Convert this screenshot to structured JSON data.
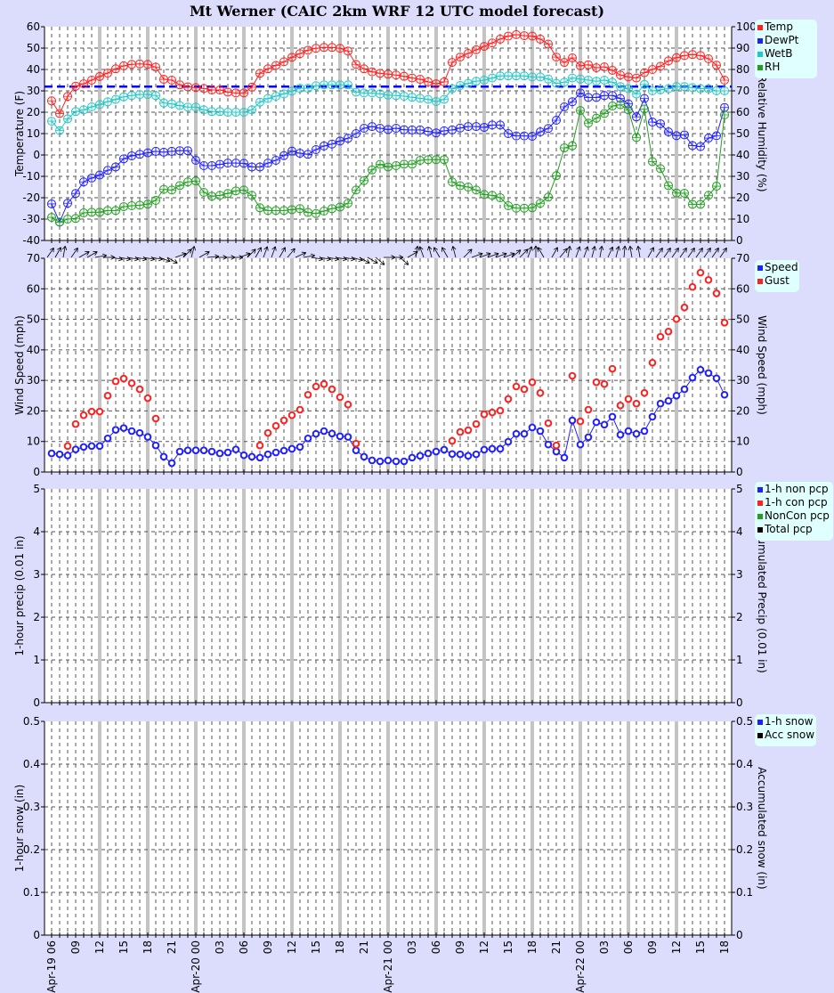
{
  "title": "Mt Werner (CAIC 2km WRF 12 UTC model forecast)",
  "x_axis": {
    "range": [
      "Apr-19 06",
      "Apr-22 18"
    ],
    "step": "1 hour",
    "tick_labels": [
      "Apr-19 06",
      "09",
      "12",
      "15",
      "18",
      "21",
      "Apr-20 00",
      "03",
      "06",
      "09",
      "12",
      "15",
      "18",
      "21",
      "Apr-21 00",
      "03",
      "06",
      "09",
      "12",
      "15",
      "18",
      "21",
      "Apr-22 00",
      "03",
      "06",
      "09",
      "12",
      "15",
      "18"
    ]
  },
  "colors": {
    "background": "#dcdcfc",
    "plot": "#ffffff",
    "legend": "#e0ffff",
    "six_hour_line": "#c4c4c4"
  },
  "chart_data": [
    {
      "type": "line",
      "ylabel": "Temperature (F)",
      "ylim": [
        -40,
        60
      ],
      "ytick_step": 10,
      "y2label": "Relative Humidity (%)",
      "y2lim": [
        0,
        100
      ],
      "y2tick_step": 10,
      "grid": true,
      "legend_placement": "right",
      "reference_line": {
        "value": 32,
        "color": "#0000ff",
        "style": "dashed"
      },
      "series": [
        {
          "name": "Temp",
          "color": "#ff2020",
          "axis": "left",
          "values": [
            25.3,
            19.4,
            27.4,
            32.2,
            33.3,
            35,
            36.7,
            38.3,
            40.3,
            41.7,
            42.4,
            42.6,
            42.4,
            41.1,
            35.4,
            35,
            32.8,
            31.9,
            31.5,
            31.1,
            30.4,
            30.4,
            29.4,
            29,
            29,
            31.7,
            38.2,
            40.3,
            41.9,
            43.6,
            45.7,
            47.4,
            49,
            49.9,
            50.3,
            50.3,
            49.9,
            48.6,
            42.4,
            40.3,
            38.9,
            38.2,
            37.8,
            37.4,
            36.8,
            36,
            35.4,
            34.2,
            33.3,
            34.2,
            43.3,
            45.8,
            47.5,
            49.2,
            50.8,
            52.4,
            54.2,
            55.6,
            56.3,
            55.8,
            55.6,
            54.2,
            51.9,
            45.8,
            43.3,
            45.4,
            41.7,
            42.2,
            40.8,
            41.2,
            39.6,
            37.4,
            36.5,
            36,
            38.5,
            40,
            41.5,
            44,
            45.5,
            46.5,
            47,
            46.5,
            45,
            42,
            35
          ]
        },
        {
          "name": "DewPt",
          "color": "#2020ff",
          "axis": "left",
          "values": [
            -22.9,
            -31.4,
            -22.6,
            -18,
            -12.6,
            -10.8,
            -9.4,
            -7.2,
            -5.6,
            -1.8,
            -0.4,
            0.3,
            1,
            1.7,
            1.3,
            1.7,
            2,
            2,
            -2.5,
            -5,
            -5,
            -4.4,
            -3.8,
            -3.8,
            -3.9,
            -5.6,
            -5.6,
            -3.8,
            -2.5,
            -0.3,
            1.8,
            0.8,
            0.3,
            2.5,
            4.2,
            5.1,
            6.5,
            7.8,
            10,
            12.5,
            13.3,
            12.5,
            11.9,
            12.5,
            11.8,
            11.7,
            11.7,
            11,
            10.3,
            11.3,
            11.7,
            12.6,
            13.3,
            13.3,
            12.9,
            14,
            14,
            10,
            8.9,
            8.9,
            8.75,
            10.8,
            12.4,
            16.25,
            22.5,
            24.9,
            29,
            26.9,
            26.9,
            27.8,
            27.8,
            26.4,
            23.9,
            17.8,
            26.4,
            15.4,
            14.6,
            10.8,
            9,
            9.4,
            4.4,
            3.9,
            7.9,
            9,
            22.2
          ]
        },
        {
          "name": "WetB",
          "color": "#20c8c8",
          "axis": "left",
          "values": [
            15.8,
            11.4,
            16.9,
            20.3,
            21.1,
            22.5,
            23.6,
            24.9,
            26,
            27.2,
            27.8,
            28.3,
            28.3,
            27.8,
            24.3,
            23.9,
            23.1,
            22.4,
            22.4,
            21.1,
            20.3,
            20.3,
            20,
            20,
            20,
            21.1,
            24.7,
            26.4,
            27.5,
            28.6,
            29.9,
            31.2,
            31.2,
            32.4,
            32.8,
            32.8,
            32.8,
            32.8,
            29.4,
            29,
            29,
            28.6,
            28,
            27.8,
            27.5,
            27,
            26.5,
            26,
            25,
            26,
            31,
            32.5,
            33.5,
            34.5,
            35,
            36,
            37,
            37,
            37,
            37,
            36.5,
            36.5,
            35.5,
            33.5,
            34,
            36,
            35.5,
            35,
            34.5,
            35,
            34,
            32,
            31,
            28.5,
            33,
            30,
            30.5,
            31,
            32,
            32,
            31.5,
            31,
            31,
            30,
            30
          ]
        },
        {
          "name": "RH",
          "color": "#20a020",
          "axis": "right",
          "values": [
            10.8,
            8.6,
            10,
            10.3,
            12.9,
            13.2,
            13.2,
            14,
            14,
            15.8,
            16.25,
            16.5,
            17,
            18.75,
            23.9,
            23.6,
            25.7,
            27.4,
            27.8,
            22.5,
            20.7,
            21.1,
            22,
            23.2,
            23.6,
            21.1,
            15.3,
            14,
            14,
            14,
            14.4,
            14.9,
            13.1,
            12.6,
            13.75,
            14.9,
            15.6,
            17.4,
            23.6,
            28,
            33,
            35.6,
            34.4,
            35,
            35.7,
            35.7,
            37.5,
            37.8,
            37.8,
            37.8,
            27.4,
            25.6,
            25,
            23.6,
            21.5,
            21.1,
            20,
            16.25,
            15.1,
            15.1,
            15.3,
            17.4,
            20.3,
            30.3,
            43.3,
            44.3,
            60.8,
            54.9,
            57.2,
            59.4,
            62.9,
            63.5,
            61.1,
            48.2,
            61.5,
            36.9,
            33.6,
            25.7,
            22.2,
            22.1,
            16.9,
            16.9,
            21.1,
            25.4,
            58.75
          ]
        }
      ]
    },
    {
      "type": "line",
      "ylabel": "Wind Speed (mph)",
      "ylim": [
        0,
        70
      ],
      "ytick_step": 10,
      "y2label": "Wind Speed (mph)",
      "y2lim": [
        0,
        70
      ],
      "y2tick_step": 10,
      "grid": true,
      "legend_placement": "right",
      "series": [
        {
          "name": "Speed",
          "color": "#2020ff",
          "style": "line",
          "values": [
            6.1,
            5.8,
            5.4,
            7.4,
            8.2,
            8.5,
            8.5,
            11,
            13.8,
            14.4,
            13.4,
            12.8,
            11.5,
            8.7,
            5,
            2.9,
            6.7,
            7.1,
            7.1,
            7.1,
            6.7,
            6.1,
            6.4,
            7.4,
            5.5,
            5,
            4.7,
            5.8,
            6.4,
            7,
            7.6,
            8.2,
            11,
            12.5,
            13.4,
            12.6,
            11.7,
            11.5,
            7.1,
            5,
            3.8,
            3.5,
            3.8,
            3.5,
            3.5,
            4.7,
            5.3,
            6.1,
            6.7,
            7.3,
            5.9,
            5.8,
            5.3,
            5.8,
            7.3,
            7.6,
            7.6,
            9.9,
            12.5,
            12.5,
            14.6,
            13.4,
            9,
            6.7,
            4.7,
            16.9,
            9,
            11.4,
            16.3,
            15.5,
            18.1,
            12.2,
            13.4,
            12.5,
            13.4,
            18.1,
            22.4,
            23.3,
            25,
            27.1,
            30.9,
            33.5,
            32.4,
            30.7,
            25.3
          ]
        },
        {
          "name": "Gust",
          "color": "#ff2020",
          "style": "points",
          "values": [
            null,
            null,
            8.5,
            15.7,
            18.6,
            19.8,
            19.8,
            25,
            29.7,
            30.6,
            29.1,
            27.1,
            24.2,
            17.5,
            null,
            null,
            null,
            null,
            null,
            null,
            null,
            null,
            null,
            null,
            null,
            null,
            8.7,
            12.8,
            15.1,
            16.9,
            18.6,
            20.4,
            25.3,
            28,
            28.8,
            27.1,
            24.5,
            22.1,
            9.3,
            null,
            null,
            null,
            null,
            null,
            null,
            null,
            null,
            null,
            null,
            null,
            10.2,
            13.1,
            13.7,
            15.7,
            18.9,
            19.5,
            20.1,
            23.9,
            28,
            27.1,
            29.4,
            25.9,
            16,
            8.7,
            null,
            31.5,
            16.6,
            20.4,
            29.4,
            28.8,
            33.8,
            21.8,
            23.9,
            22.4,
            25.9,
            35.8,
            44.3,
            46,
            50.1,
            53.9,
            60.6,
            65.3,
            62.9,
            58.5,
            48.9
          ]
        }
      ],
      "wind_arrow_heading_deg": [
        35,
        30,
        10,
        35,
        60,
        60,
        80,
        90,
        100,
        100,
        100,
        100,
        100,
        100,
        110,
        120,
        70,
        45,
        15,
        60,
        85,
        90,
        90,
        90,
        70,
        45,
        30,
        20,
        20,
        30,
        40,
        65,
        80,
        100,
        100,
        100,
        100,
        100,
        105,
        120,
        120,
        130,
        90,
        90,
        130,
        60,
        10,
        340,
        345,
        330,
        330,
        345,
        45,
        70,
        70,
        70,
        70,
        70,
        50,
        45,
        20,
        0,
        330,
        30,
        40,
        10,
        20,
        20,
        15,
        10,
        25,
        15,
        5,
        350,
        350,
        30,
        35,
        35,
        35,
        35,
        35,
        35,
        35,
        35,
        35
      ]
    },
    {
      "type": "bar",
      "ylabel": "1-hour precip (0.01 in)",
      "ylim": [
        0,
        5
      ],
      "ytick_step": 1,
      "y2label": "Accumulated Precip (0.01 in)",
      "y2lim": [
        0,
        5
      ],
      "y2tick_step": 1,
      "grid": true,
      "legend_placement": "right",
      "series": [
        {
          "name": "1-h non pcp",
          "color": "#2020ff",
          "values": []
        },
        {
          "name": "1-h con pcp",
          "color": "#ff2020",
          "values": []
        },
        {
          "name": "NonCon pcp",
          "color": "#20a020",
          "values": []
        },
        {
          "name": "Total pcp",
          "color": "#000000",
          "values": []
        }
      ]
    },
    {
      "type": "bar",
      "ylabel": "1-hour snow (in)",
      "ylim": [
        0,
        0.5
      ],
      "ytick_step": 0.1,
      "y2label": "Accumulated snow (in)",
      "y2lim": [
        0,
        0.5
      ],
      "y2tick_step": 0.1,
      "grid": true,
      "legend_placement": "right",
      "series": [
        {
          "name": "1-h snow",
          "color": "#2020ff",
          "values": []
        },
        {
          "name": "Acc snow",
          "color": "#000000",
          "values": []
        }
      ]
    }
  ]
}
